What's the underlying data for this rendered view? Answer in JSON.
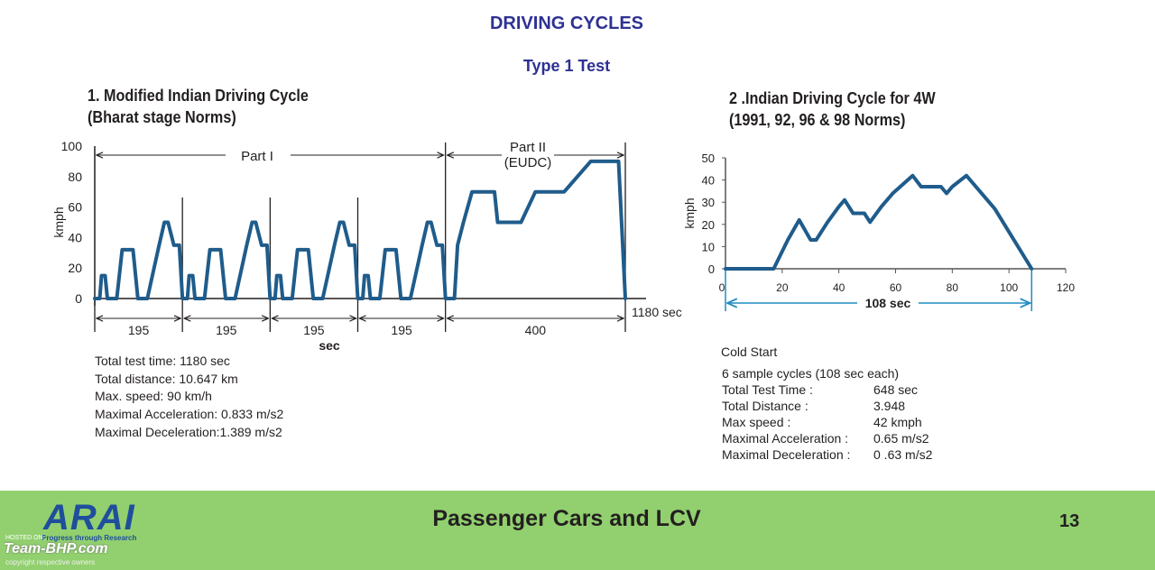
{
  "title": "DRIVING CYCLES",
  "subtitle": "Type 1 Test",
  "colors": {
    "title": "#2e3192",
    "series": "#1f5c8b",
    "axis": "#231f20",
    "annotation": "#1e8bc3",
    "footer_bg": "#92d06f"
  },
  "chart_data": [
    {
      "type": "line",
      "title_lines": [
        "1. Modified Indian Driving Cycle",
        "(Bharat stage Norms)"
      ],
      "xlabel": "sec",
      "ylabel": "kmph",
      "xlim": [
        0,
        1180
      ],
      "ylim": [
        0,
        100
      ],
      "yticks": [
        0,
        20,
        40,
        60,
        80,
        100
      ],
      "segments": [
        {
          "label": "195"
        },
        {
          "label": "195"
        },
        {
          "label": "195"
        },
        {
          "label": "195"
        },
        {
          "label": "400"
        }
      ],
      "end_label": "1180 sec",
      "part_labels": {
        "part1": "Part I",
        "part2_line1": "Part II",
        "part2_line2": "(EUDC)"
      },
      "series": [
        {
          "x": [
            0,
            11,
            15,
            23,
            28,
            44,
            49,
            61,
            85,
            96,
            117,
            143,
            155,
            163,
            176,
            188,
            195
          ],
          "y": [
            0,
            0,
            15,
            15,
            0,
            0,
            0,
            32,
            32,
            0,
            0,
            35,
            50,
            50,
            35,
            35,
            0
          ]
        },
        {
          "pattern_repeats": 4
        },
        {
          "x": [
            780,
            800,
            807,
            820,
            839,
            889,
            896,
            948,
            980,
            1036,
            1044,
            1103,
            1136,
            1165,
            1180
          ],
          "y": [
            0,
            0,
            35,
            50,
            70,
            70,
            50,
            50,
            70,
            70,
            70,
            90,
            90,
            90,
            0
          ]
        }
      ]
    },
    {
      "type": "line",
      "title_lines": [
        "2 .Indian Driving Cycle for 4W",
        "(1991, 92, 96 & 98 Norms)"
      ],
      "ylabel": "kmph",
      "xlim": [
        0,
        120
      ],
      "ylim": [
        0,
        50
      ],
      "xticks": [
        0,
        20,
        40,
        60,
        80,
        100,
        120
      ],
      "yticks": [
        0,
        10,
        20,
        30,
        40,
        50
      ],
      "span_label": "108 sec",
      "series": [
        {
          "x": [
            0,
            17,
            22,
            26,
            30,
            32,
            36,
            40,
            42,
            45,
            49,
            51,
            55,
            59,
            66,
            69,
            76,
            78,
            80,
            85,
            95,
            108
          ],
          "y": [
            0,
            0,
            13,
            22,
            13,
            13,
            21,
            28,
            31,
            25,
            25,
            21,
            28,
            34,
            42,
            37,
            37,
            34,
            37,
            42,
            27,
            0
          ]
        }
      ]
    }
  ],
  "chart1_info": [
    "Total test time: 1180 sec",
    "Total distance: 10.647 km",
    "Max. speed: 90 km/h",
    "Maximal Acceleration: 0.833 m/s2",
    "Maximal Deceleration:1.389 m/s2"
  ],
  "chart2_info": {
    "cold_start": "Cold Start",
    "sample": "6 sample cycles (108 sec each)",
    "rows": [
      {
        "k": "Total Test Time :",
        "v": "648 sec"
      },
      {
        "k": "Total Distance :",
        "v": "3.948"
      },
      {
        "k": "Max speed :",
        "v": "42 kmph"
      },
      {
        "k": "Maximal Acceleration :",
        "v": "0.65  m/s2"
      },
      {
        "k": "Maximal Deceleration :",
        "v": "0 .63 m/s2"
      }
    ]
  },
  "footer": {
    "text": "Passenger Cars and LCV",
    "page_number": "13",
    "logo": "ARAI",
    "logo_tagline": "Progress through Research",
    "hosted": "HOSTED ON :",
    "watermark": "Team-BHP.com",
    "copyright": "copyright respective owners"
  }
}
